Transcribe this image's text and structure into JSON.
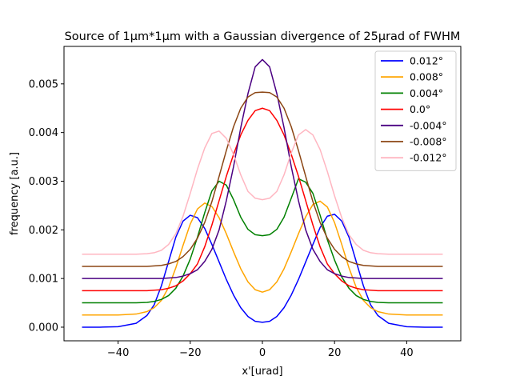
{
  "chart_data": {
    "type": "line",
    "title": "Source of 1μm*1μm with a Gaussian divergence of 25μrad of FWHM",
    "xlabel": "x'[urad]",
    "ylabel": "frequency [a.u.]",
    "xlim": [
      -55,
      55
    ],
    "ylim": [
      -0.00028,
      0.00577
    ],
    "xticks": [
      -40,
      -20,
      0,
      20,
      40
    ],
    "xtick_labels": [
      "−40",
      "−20",
      "0",
      "20",
      "40"
    ],
    "yticks": [
      0.0,
      0.001,
      0.002,
      0.003,
      0.004,
      0.005
    ],
    "ytick_labels": [
      "0.000",
      "0.001",
      "0.002",
      "0.003",
      "0.004",
      "0.005"
    ],
    "grid": false,
    "legend_position": "top-right",
    "x_range": [
      -50,
      50
    ],
    "series": [
      {
        "name": "0.012°",
        "color": "#0000ff",
        "x": [
          -50,
          -45,
          -40,
          -35,
          -32,
          -30,
          -28,
          -26,
          -24,
          -22,
          -20,
          -18,
          -16,
          -14,
          -12,
          -10,
          -8,
          -6,
          -4,
          -2,
          0,
          2,
          4,
          6,
          8,
          10,
          12,
          14,
          16,
          18,
          20,
          22,
          24,
          26,
          28,
          30,
          32,
          35,
          40,
          45,
          50
        ],
        "y": [
          0.0,
          0.0,
          1e-05,
          8e-05,
          0.00024,
          0.00046,
          0.00085,
          0.00135,
          0.00185,
          0.00218,
          0.0023,
          0.00225,
          0.00203,
          0.0017,
          0.00134,
          0.00098,
          0.00066,
          0.0004,
          0.00022,
          0.00012,
          0.0001,
          0.00012,
          0.00022,
          0.0004,
          0.00066,
          0.00098,
          0.00134,
          0.0017,
          0.00205,
          0.00228,
          0.00232,
          0.00218,
          0.00185,
          0.00135,
          0.00085,
          0.00046,
          0.00024,
          8e-05,
          1e-05,
          0.0,
          0.0
        ]
      },
      {
        "name": "0.008°",
        "color": "#ffa500",
        "x": [
          -50,
          -45,
          -40,
          -35,
          -32,
          -30,
          -28,
          -26,
          -24,
          -22,
          -20,
          -18,
          -16,
          -14,
          -12,
          -10,
          -8,
          -6,
          -4,
          -2,
          0,
          2,
          4,
          6,
          8,
          10,
          12,
          14,
          16,
          18,
          20,
          22,
          24,
          26,
          28,
          30,
          32,
          35,
          40,
          45,
          50
        ],
        "y": [
          0.00025,
          0.00025,
          0.00025,
          0.00027,
          0.00032,
          0.0004,
          0.00055,
          0.00082,
          0.00122,
          0.00168,
          0.00212,
          0.00243,
          0.00255,
          0.00248,
          0.00225,
          0.00192,
          0.00155,
          0.0012,
          0.00093,
          0.00077,
          0.00072,
          0.00077,
          0.00093,
          0.0012,
          0.00155,
          0.00192,
          0.00227,
          0.00252,
          0.00259,
          0.00247,
          0.00215,
          0.0017,
          0.00122,
          0.00082,
          0.00055,
          0.0004,
          0.00032,
          0.00027,
          0.00025,
          0.00025,
          0.00025
        ]
      },
      {
        "name": "0.004°",
        "color": "#008000",
        "x": [
          -50,
          -45,
          -40,
          -35,
          -32,
          -30,
          -28,
          -26,
          -24,
          -22,
          -20,
          -18,
          -16,
          -14,
          -12,
          -10,
          -8,
          -6,
          -4,
          -2,
          0,
          2,
          4,
          6,
          8,
          10,
          12,
          14,
          16,
          18,
          20,
          22,
          24,
          26,
          28,
          30,
          32,
          35,
          40,
          45,
          50
        ],
        "y": [
          0.0005,
          0.0005,
          0.0005,
          0.0005,
          0.00051,
          0.00053,
          0.00057,
          0.00065,
          0.0008,
          0.00105,
          0.0014,
          0.00185,
          0.00235,
          0.0028,
          0.003,
          0.00292,
          0.00262,
          0.00226,
          0.00201,
          0.0019,
          0.00188,
          0.0019,
          0.00201,
          0.00226,
          0.00265,
          0.00305,
          0.00298,
          0.00275,
          0.0023,
          0.0018,
          0.00138,
          0.00103,
          0.0008,
          0.00065,
          0.00057,
          0.00053,
          0.00051,
          0.0005,
          0.0005,
          0.0005,
          0.0005
        ]
      },
      {
        "name": "0.0°",
        "color": "#ff0000",
        "x": [
          -50,
          -45,
          -40,
          -35,
          -32,
          -30,
          -28,
          -26,
          -24,
          -22,
          -20,
          -18,
          -16,
          -14,
          -12,
          -10,
          -8,
          -6,
          -4,
          -2,
          0,
          2,
          4,
          6,
          8,
          10,
          12,
          14,
          16,
          18,
          20,
          22,
          24,
          26,
          28,
          30,
          32,
          35,
          40,
          45,
          50
        ],
        "y": [
          0.00075,
          0.00075,
          0.00075,
          0.00075,
          0.00075,
          0.00076,
          0.00077,
          0.0008,
          0.00085,
          0.00095,
          0.0011,
          0.0013,
          0.00165,
          0.0021,
          0.0026,
          0.0031,
          0.00355,
          0.00395,
          0.00425,
          0.00445,
          0.0045,
          0.00445,
          0.00425,
          0.00395,
          0.00355,
          0.0031,
          0.0026,
          0.0021,
          0.00165,
          0.0013,
          0.0011,
          0.00095,
          0.00085,
          0.0008,
          0.00077,
          0.00076,
          0.00075,
          0.00075,
          0.00075,
          0.00075,
          0.00075
        ]
      },
      {
        "name": "-0.004°",
        "color": "#4b0082",
        "x": [
          -50,
          -45,
          -40,
          -35,
          -32,
          -30,
          -28,
          -26,
          -24,
          -22,
          -20,
          -18,
          -16,
          -14,
          -12,
          -10,
          -8,
          -6,
          -4,
          -2,
          0,
          2,
          4,
          6,
          8,
          10,
          12,
          14,
          16,
          18,
          20,
          22,
          24,
          26,
          28,
          30,
          32,
          35,
          40,
          45,
          50
        ],
        "y": [
          0.001,
          0.001,
          0.001,
          0.001,
          0.001,
          0.001,
          0.001,
          0.00101,
          0.00102,
          0.00105,
          0.0011,
          0.00118,
          0.00135,
          0.0016,
          0.002,
          0.0026,
          0.0033,
          0.0041,
          0.0048,
          0.00535,
          0.0055,
          0.00535,
          0.0048,
          0.0041,
          0.0033,
          0.0026,
          0.002,
          0.0016,
          0.00135,
          0.00118,
          0.0011,
          0.00105,
          0.00102,
          0.00101,
          0.001,
          0.001,
          0.001,
          0.001,
          0.001,
          0.001,
          0.001
        ]
      },
      {
        "name": "-0.008°",
        "color": "#8b4513",
        "x": [
          -50,
          -45,
          -40,
          -35,
          -32,
          -30,
          -28,
          -26,
          -24,
          -22,
          -20,
          -18,
          -16,
          -14,
          -12,
          -10,
          -8,
          -6,
          -4,
          -2,
          0,
          2,
          4,
          6,
          8,
          10,
          12,
          14,
          16,
          18,
          20,
          22,
          24,
          26,
          28,
          30,
          32,
          35,
          40,
          45,
          50
        ],
        "y": [
          0.00125,
          0.00125,
          0.00125,
          0.00125,
          0.00125,
          0.00126,
          0.00127,
          0.0013,
          0.00135,
          0.00145,
          0.0016,
          0.00183,
          0.00215,
          0.00258,
          0.0031,
          0.00363,
          0.00412,
          0.0045,
          0.00473,
          0.00482,
          0.00483,
          0.00482,
          0.00473,
          0.0045,
          0.00412,
          0.00363,
          0.0031,
          0.00258,
          0.00215,
          0.00183,
          0.0016,
          0.00145,
          0.00135,
          0.0013,
          0.00127,
          0.00126,
          0.00125,
          0.00125,
          0.00125,
          0.00125,
          0.00125
        ]
      },
      {
        "name": "-0.012°",
        "color": "#ffb6c1",
        "x": [
          -50,
          -45,
          -40,
          -35,
          -32,
          -30,
          -28,
          -26,
          -24,
          -22,
          -20,
          -18,
          -16,
          -14,
          -12,
          -10,
          -8,
          -6,
          -4,
          -2,
          0,
          2,
          4,
          6,
          8,
          10,
          12,
          14,
          16,
          18,
          20,
          22,
          24,
          26,
          28,
          30,
          32,
          35,
          40,
          45,
          50
        ],
        "y": [
          0.0015,
          0.0015,
          0.0015,
          0.0015,
          0.00151,
          0.00153,
          0.00158,
          0.0017,
          0.00192,
          0.00228,
          0.00275,
          0.00325,
          0.00368,
          0.00398,
          0.00403,
          0.00388,
          0.00355,
          0.00313,
          0.00279,
          0.00265,
          0.00262,
          0.00265,
          0.00279,
          0.00313,
          0.00358,
          0.00395,
          0.00406,
          0.00395,
          0.00365,
          0.0032,
          0.0027,
          0.00225,
          0.0019,
          0.0017,
          0.00158,
          0.00153,
          0.00151,
          0.0015,
          0.0015,
          0.0015,
          0.0015
        ]
      }
    ]
  }
}
